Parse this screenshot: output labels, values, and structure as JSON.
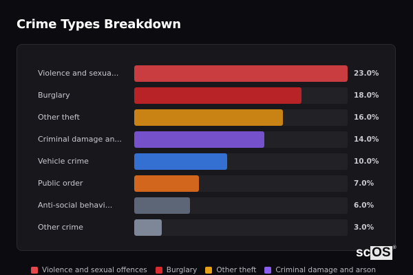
{
  "title": "Crime Types Breakdown",
  "chart_data": {
    "type": "bar",
    "orientation": "horizontal",
    "title": "Crime Types Breakdown",
    "categories": [
      "Violence and sexual offences",
      "Burglary",
      "Other theft",
      "Criminal damage and arson",
      "Vehicle crime",
      "Public order",
      "Anti-social behaviour",
      "Other crime"
    ],
    "display_labels": [
      "Violence and sexua...",
      "Burglary",
      "Other theft",
      "Criminal damage an...",
      "Vehicle crime",
      "Public order",
      "Anti-social behavi...",
      "Other crime"
    ],
    "values": [
      23.0,
      18.0,
      16.0,
      14.0,
      10.0,
      7.0,
      6.0,
      3.0
    ],
    "value_labels": [
      "23.0%",
      "18.0%",
      "16.0%",
      "14.0%",
      "10.0%",
      "7.0%",
      "6.0%",
      "3.0%"
    ],
    "colors": [
      "#c93c3f",
      "#b82327",
      "#c98214",
      "#7552cc",
      "#3370d1",
      "#d1661c",
      "#5c6677",
      "#7e8797"
    ],
    "xlabel": "",
    "ylabel": "",
    "unit": "%",
    "max_reference": 23.0,
    "grid": false,
    "legend_position": "bottom"
  },
  "legend": [
    {
      "label": "Violence and sexual offences",
      "color": "#e5474d"
    },
    {
      "label": "Burglary",
      "color": "#d92a2f"
    },
    {
      "label": "Other theft",
      "color": "#e5a017"
    },
    {
      "label": "Criminal damage and arson",
      "color": "#8b5cf0"
    }
  ],
  "watermark": {
    "sc": "sc",
    "os": "OS",
    "reg": "®"
  }
}
